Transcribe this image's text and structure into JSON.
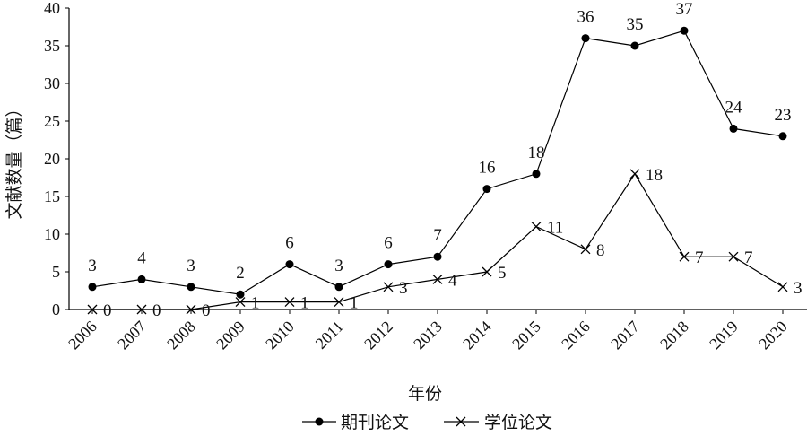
{
  "chart_data": {
    "type": "line",
    "xlabel": "年份",
    "ylabel": "文献数量（篇）",
    "ylim": [
      0,
      40
    ],
    "yticks": [
      0,
      5,
      10,
      15,
      20,
      25,
      30,
      35,
      40
    ],
    "grid": false,
    "legend_position": "bottom",
    "categories": [
      "2006",
      "2007",
      "2008",
      "2009",
      "2010",
      "2011",
      "2012",
      "2013",
      "2014",
      "2015",
      "2016",
      "2017",
      "2018",
      "2019",
      "2020"
    ],
    "series": [
      {
        "name": "期刊论文",
        "marker": "filled-circle",
        "color": "#000000",
        "values": [
          3,
          4,
          3,
          2,
          6,
          3,
          6,
          7,
          16,
          18,
          36,
          35,
          37,
          24,
          23
        ]
      },
      {
        "name": "学位论文",
        "marker": "cross",
        "color": "#000000",
        "values": [
          0,
          0,
          0,
          1,
          1,
          1,
          3,
          4,
          5,
          11,
          8,
          18,
          7,
          7,
          3
        ]
      }
    ]
  }
}
